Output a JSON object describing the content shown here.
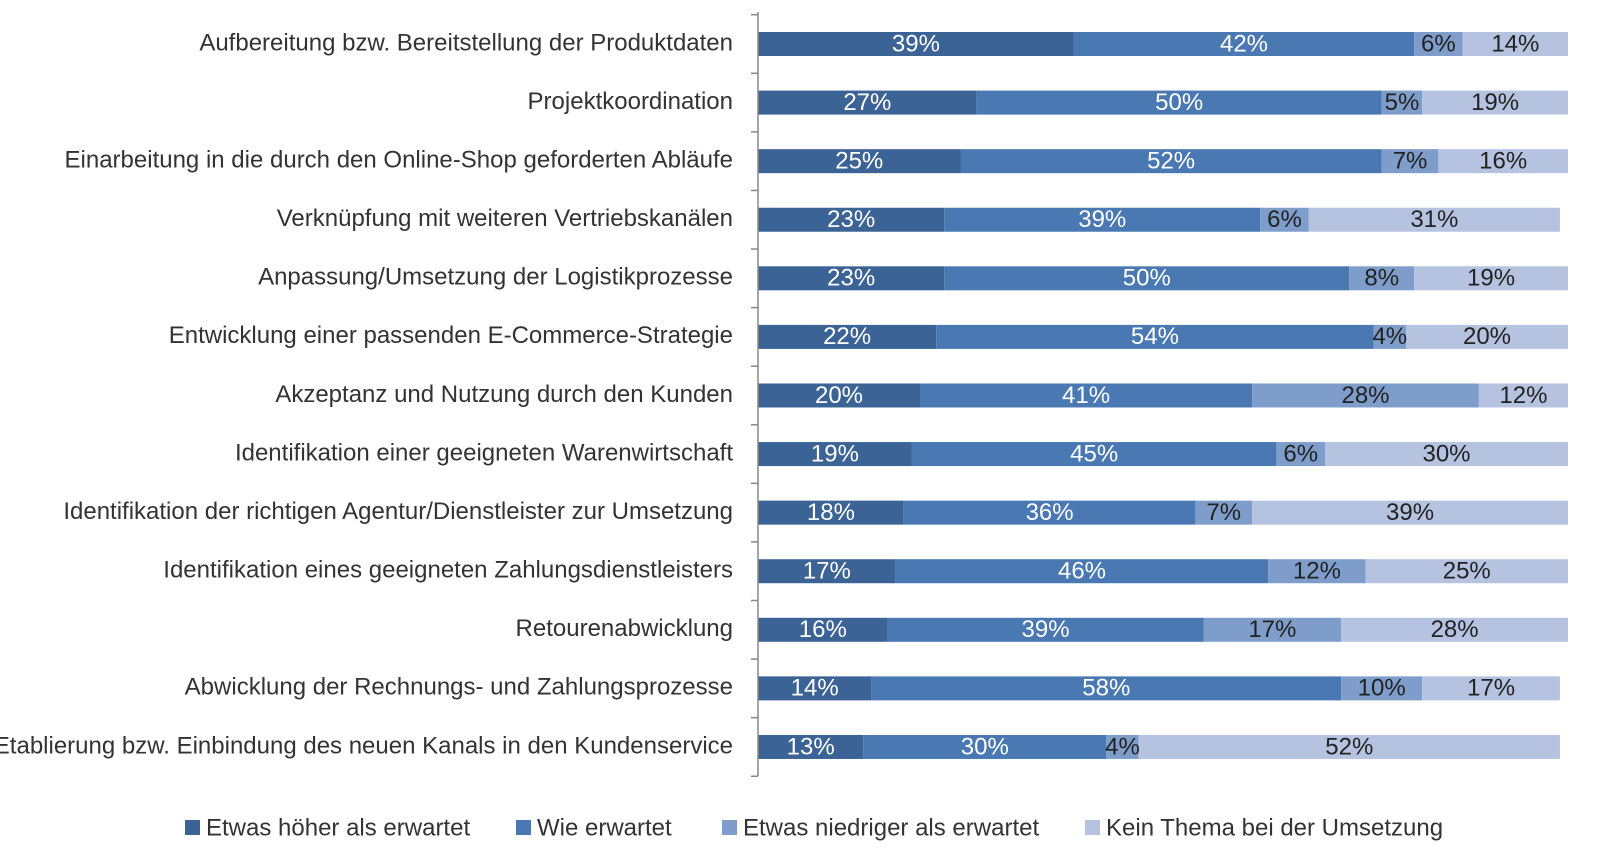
{
  "chart_data": {
    "type": "stacked-bar-horizontal",
    "categories": [
      "Aufbereitung bzw. Bereitstellung der Produktdaten",
      "Projektkoordination",
      "Einarbeitung in die durch den Online-Shop geforderten Abläufe",
      "Verknüpfung mit weiteren Vertriebskanälen",
      "Anpassung/Umsetzung der Logistikprozesse",
      "Entwicklung einer passenden E-Commerce-Strategie",
      "Akzeptanz und Nutzung durch den Kunden",
      "Identifikation einer geeigneten Warenwirtschaft",
      "Identifikation der richtigen Agentur/Dienstleister zur Umsetzung",
      "Identifikation eines geeigneten Zahlungsdienstleisters",
      "Retourenabwicklung",
      "Abwicklung der Rechnungs- und Zahlungsprozesse",
      "Etablierung bzw. Einbindung des neuen Kanals in den Kundenservice"
    ],
    "series": [
      {
        "name": "Etwas höher als erwartet",
        "color": "#3b6395",
        "label_color": "#ffffff",
        "values": [
          39,
          27,
          25,
          23,
          23,
          22,
          20,
          19,
          18,
          17,
          16,
          14,
          13
        ],
        "value_labels": [
          "39%",
          "27%",
          "25%",
          "23%",
          "23%",
          "22%",
          "20%",
          "19%",
          "18%",
          "17%",
          "16%",
          "14%",
          "13%"
        ]
      },
      {
        "name": "Wie erwartet",
        "color": "#4a78b2",
        "label_color": "#ffffff",
        "values": [
          42,
          50,
          52,
          39,
          50,
          54,
          41,
          45,
          36,
          46,
          39,
          58,
          30
        ],
        "value_labels": [
          "42%",
          "50%",
          "52%",
          "39%",
          "50%",
          "54%",
          "41%",
          "45%",
          "36%",
          "46%",
          "39%",
          "58%",
          "30%"
        ]
      },
      {
        "name": "Etwas niedriger als erwartet",
        "color": "#7e9dcb",
        "label_color": "#222222",
        "values": [
          6,
          5,
          7,
          6,
          8,
          4,
          28,
          6,
          7,
          12,
          17,
          10,
          4
        ],
        "value_labels": [
          "6%",
          "5%",
          "7%",
          "6%",
          "8%",
          "4%",
          "28%",
          "6%",
          "7%",
          "12%",
          "17%",
          "10%",
          "4%"
        ]
      },
      {
        "name": "Kein Thema bei der Umsetzung",
        "color": "#b5c3e0",
        "label_color": "#222222",
        "values": [
          14,
          19,
          16,
          31,
          19,
          20,
          12,
          30,
          39,
          25,
          28,
          17,
          52
        ],
        "value_labels": [
          "14%",
          "19%",
          "16%",
          "31%",
          "19%",
          "20%",
          "12%",
          "30%",
          "39%",
          "25%",
          "28%",
          "17%",
          "52%"
        ]
      }
    ],
    "xlim": [
      0,
      100
    ],
    "legend": "bottom"
  }
}
